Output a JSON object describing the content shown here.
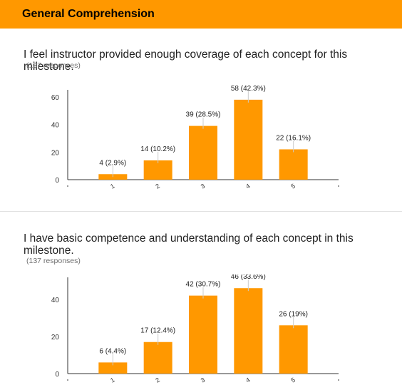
{
  "section": {
    "title": "General Comprehension"
  },
  "questions": [
    {
      "title": "I feel instructor provided enough coverage of each concept for this milestone.",
      "responses": "(137 responses)"
    },
    {
      "title": "I have basic competence and understanding of each concept in this milestone.",
      "responses": "(137 responses)"
    }
  ],
  "chart_data": [
    {
      "type": "bar",
      "categories": [
        "1",
        "2",
        "3",
        "4",
        "5"
      ],
      "values": [
        4,
        14,
        39,
        58,
        22
      ],
      "data_labels": [
        "4 (2.9%)",
        "14 (10.2%)",
        "39 (28.5%)",
        "58 (42.3%)",
        "22 (16.1%)"
      ],
      "yticks": [
        0,
        20,
        40,
        60
      ],
      "ylim": [
        0,
        60
      ],
      "xlabel": "",
      "ylabel": "",
      "bar_color": "#ff9800"
    },
    {
      "type": "bar",
      "categories": [
        "1",
        "2",
        "3",
        "4",
        "5"
      ],
      "values": [
        6,
        17,
        42,
        46,
        26
      ],
      "data_labels": [
        "6 (4.4%)",
        "17 (12.4%)",
        "42 (30.7%)",
        "46 (33.6%)",
        "26 (19%)"
      ],
      "yticks": [
        0,
        20,
        40
      ],
      "ylim": [
        0,
        48
      ],
      "xlabel": "",
      "ylabel": "",
      "bar_color": "#ff9800"
    }
  ]
}
